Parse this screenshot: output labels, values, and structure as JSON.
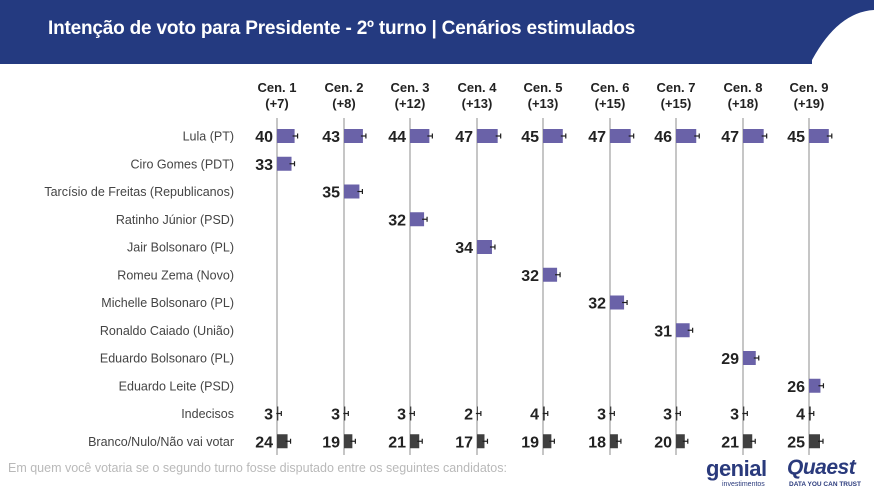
{
  "header": {
    "title": "Intenção de voto para Presidente - 2º turno | Cenários estimulados"
  },
  "colors": {
    "header_bg": "#243a80",
    "lula_bar": "#6a62a8",
    "candidate_bar": "#6a62a8",
    "other_bar": "#404040",
    "gridline": "#c6c6c6"
  },
  "footnote": "Em quem você votaria se o segundo turno fosse disputado entre os seguintes candidatos:",
  "logos": {
    "genial": "genial",
    "genial_sub": "investimentos",
    "quaest": "Quaest",
    "quaest_sub": "DATA YOU CAN TRUST"
  },
  "chart_data": {
    "type": "bar",
    "title": "Intenção de voto para Presidente - 2º turno | Cenários estimulados",
    "scenarios": [
      {
        "name": "Cen. 1",
        "margin": "(+7)"
      },
      {
        "name": "Cen. 2",
        "margin": "(+8)"
      },
      {
        "name": "Cen. 3",
        "margin": "(+12)"
      },
      {
        "name": "Cen. 4",
        "margin": "(+13)"
      },
      {
        "name": "Cen. 5",
        "margin": "(+13)"
      },
      {
        "name": "Cen. 6",
        "margin": "(+15)"
      },
      {
        "name": "Cen. 7",
        "margin": "(+15)"
      },
      {
        "name": "Cen. 8",
        "margin": "(+18)"
      },
      {
        "name": "Cen. 9",
        "margin": "(+19)"
      }
    ],
    "rows": [
      {
        "label": "Lula (PT)",
        "kind": "lula",
        "values": [
          40,
          43,
          44,
          47,
          45,
          47,
          46,
          47,
          45
        ]
      },
      {
        "label": "Ciro Gomes (PDT)",
        "kind": "candidate",
        "values": [
          33,
          null,
          null,
          null,
          null,
          null,
          null,
          null,
          null
        ]
      },
      {
        "label": "Tarcísio de Freitas (Republicanos)",
        "kind": "candidate",
        "values": [
          null,
          35,
          null,
          null,
          null,
          null,
          null,
          null,
          null
        ]
      },
      {
        "label": "Ratinho Júnior (PSD)",
        "kind": "candidate",
        "values": [
          null,
          null,
          32,
          null,
          null,
          null,
          null,
          null,
          null
        ]
      },
      {
        "label": "Jair Bolsonaro (PL)",
        "kind": "candidate",
        "values": [
          null,
          null,
          null,
          34,
          null,
          null,
          null,
          null,
          null
        ]
      },
      {
        "label": "Romeu Zema (Novo)",
        "kind": "candidate",
        "values": [
          null,
          null,
          null,
          null,
          32,
          null,
          null,
          null,
          null
        ]
      },
      {
        "label": "Michelle Bolsonaro (PL)",
        "kind": "candidate",
        "values": [
          null,
          null,
          null,
          null,
          null,
          32,
          null,
          null,
          null
        ]
      },
      {
        "label": "Ronaldo Caiado (União)",
        "kind": "candidate",
        "values": [
          null,
          null,
          null,
          null,
          null,
          null,
          31,
          null,
          null
        ]
      },
      {
        "label": "Eduardo Bolsonaro (PL)",
        "kind": "candidate",
        "values": [
          null,
          null,
          null,
          null,
          null,
          null,
          null,
          29,
          null
        ]
      },
      {
        "label": "Eduardo Leite (PSD)",
        "kind": "candidate",
        "values": [
          null,
          null,
          null,
          null,
          null,
          null,
          null,
          null,
          26
        ]
      },
      {
        "label": "Indecisos",
        "kind": "other",
        "values": [
          3,
          3,
          3,
          2,
          4,
          3,
          3,
          3,
          4
        ]
      },
      {
        "label": "Branco/Nulo/Não vai votar",
        "kind": "other",
        "values": [
          24,
          19,
          21,
          17,
          19,
          18,
          20,
          21,
          25
        ]
      }
    ]
  }
}
